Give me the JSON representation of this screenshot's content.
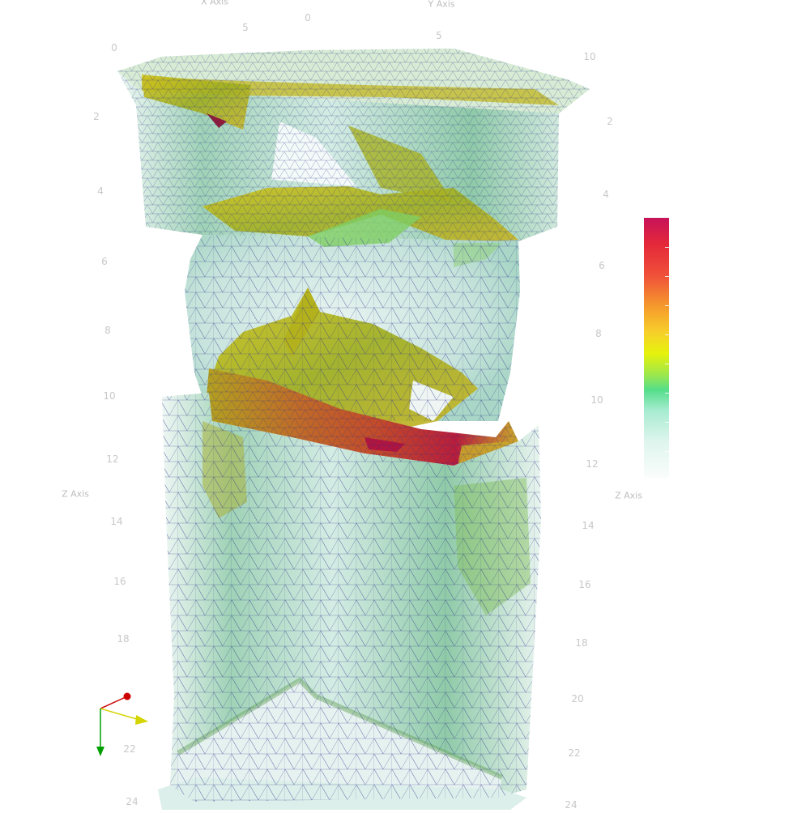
{
  "axes": {
    "x_title": "X Axis",
    "y_title": "Y Axis",
    "z_title_left": "Z Axis",
    "z_title_right": "Z Axis",
    "x_ticks": [
      "5",
      "0"
    ],
    "y_ticks": [
      "0",
      "5",
      "10"
    ],
    "z_ticks_left": [
      "0",
      "2",
      "4",
      "6",
      "8",
      "10",
      "12",
      "14",
      "16",
      "18",
      "22",
      "24"
    ],
    "z_ticks_right": [
      "2",
      "4",
      "6",
      "8",
      "10",
      "12",
      "14",
      "16",
      "18",
      "20",
      "22",
      "24"
    ]
  },
  "colorbar": {
    "colors": [
      "#c7125a",
      "#e4283a",
      "#f59a2c",
      "#f7d02a",
      "#e6f20c",
      "#55de8a",
      "#dff5ee",
      "#fbfdfd"
    ]
  },
  "orientation_triad": {
    "x_color": "#d4d400",
    "y_color": "#cc0000",
    "z_color": "#00a000"
  },
  "mesh": {
    "wire_color": "#2a2f8a",
    "base_color": "#bfe3da"
  }
}
